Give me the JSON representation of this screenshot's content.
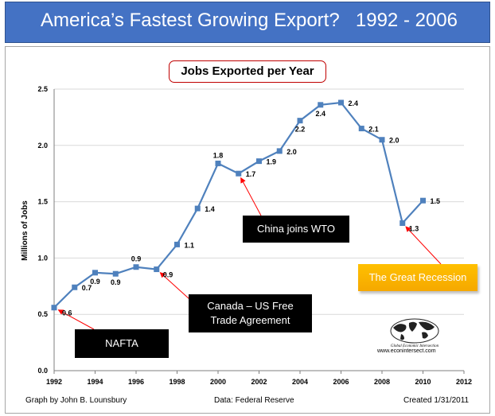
{
  "banner": {
    "title": "America’s Fastest Growing Export?",
    "range": "1992 - 2006"
  },
  "chart_data": {
    "type": "line",
    "title": "Jobs Exported per Year",
    "xlabel": "",
    "ylabel": "Millions of Jobs",
    "xlim": [
      1992,
      2012
    ],
    "ylim": [
      0.0,
      2.5
    ],
    "x_ticks": [
      1992,
      1994,
      1996,
      1998,
      2000,
      2002,
      2004,
      2006,
      2008,
      2010,
      2012
    ],
    "y_ticks": [
      "0.0",
      "0.5",
      "1.0",
      "1.5",
      "2.0",
      "2.5"
    ],
    "grid": true,
    "legend": "none",
    "color": "#4f81bd",
    "series": [
      {
        "x": [
          1992,
          1993,
          1994,
          1995,
          1996,
          1997,
          1998,
          1999,
          2000,
          2001,
          2002,
          2003,
          2004,
          2005,
          2006,
          2007,
          2008,
          2009,
          2010
        ],
        "y": [
          0.56,
          0.74,
          0.87,
          0.86,
          0.92,
          0.9,
          1.12,
          1.44,
          1.84,
          1.75,
          1.86,
          1.95,
          2.22,
          2.36,
          2.38,
          2.15,
          2.05,
          1.31,
          1.51
        ],
        "data_labels": [
          "0.6",
          "0.7",
          "0.9",
          "0.9",
          "0.9",
          "0.9",
          "1.1",
          "1.4",
          "1.8",
          "1.7",
          "1.9",
          "2.0",
          "2.2",
          "2.4",
          "2.4",
          "2.1",
          "2.0",
          "1.3",
          "1.5"
        ]
      }
    ],
    "annotations": [
      {
        "id": "nafta",
        "text": "NAFTA",
        "points_to": [
          1992,
          0.56
        ]
      },
      {
        "id": "canada",
        "text": "Canada – US Free Trade Agreement",
        "points_to": [
          1997,
          0.9
        ]
      },
      {
        "id": "china",
        "text": "China joins WTO",
        "points_to": [
          2001,
          1.75
        ]
      },
      {
        "id": "recession",
        "text": "The Great Recession",
        "points_to": [
          2009,
          1.31
        ]
      }
    ]
  },
  "notes": {
    "china": "China joins WTO",
    "canada_line1": "Canada – US Free",
    "canada_line2": "Trade Agreement",
    "nafta": "NAFTA",
    "recession": "The Great Recession"
  },
  "logo": {
    "name": "Global Economic Intersection",
    "url": "www.econintersect.com",
    "icon": "globe-icon"
  },
  "footer": {
    "author": "Graph by John B. Lounsbury",
    "data": "Data:  Federal Reserve",
    "created": "Created 1/31/2011"
  }
}
